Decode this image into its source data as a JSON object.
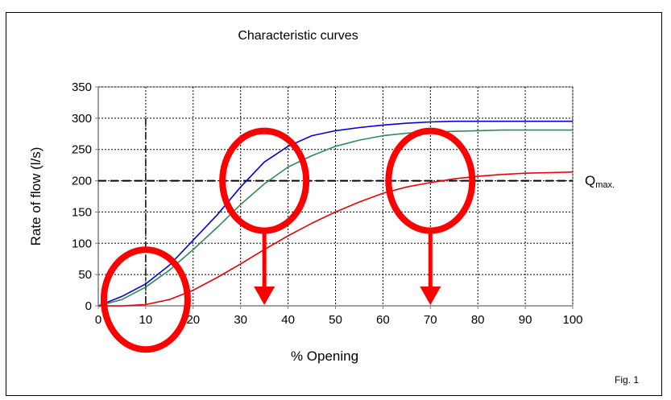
{
  "chart_data": {
    "type": "line",
    "title": "Characteristic curves",
    "xlabel": "% Opening",
    "ylabel": "Rate of flow (l/s)",
    "xlim": [
      0,
      100
    ],
    "ylim": [
      0,
      350
    ],
    "xticks": [
      0,
      10,
      20,
      30,
      40,
      50,
      60,
      70,
      80,
      90,
      100
    ],
    "yticks": [
      0,
      50,
      100,
      150,
      200,
      250,
      300,
      350
    ],
    "grid": true,
    "series": [
      {
        "color": "#0000dd",
        "x": [
          0,
          5,
          10,
          15,
          20,
          25,
          30,
          35,
          40,
          45,
          50,
          55,
          60,
          65,
          70,
          75,
          80,
          85,
          90,
          95,
          100
        ],
        "y": [
          0,
          15,
          35,
          65,
          105,
          145,
          190,
          230,
          255,
          272,
          280,
          285,
          289,
          292,
          294,
          295,
          295,
          295,
          295,
          295,
          295
        ]
      },
      {
        "color": "#2e8b57",
        "x": [
          0,
          5,
          10,
          15,
          20,
          25,
          30,
          35,
          40,
          45,
          50,
          55,
          60,
          65,
          70,
          75,
          80,
          85,
          90,
          95,
          100
        ],
        "y": [
          0,
          10,
          30,
          57,
          90,
          125,
          162,
          195,
          222,
          240,
          255,
          265,
          272,
          276,
          278,
          279,
          280,
          281,
          281,
          281,
          281
        ]
      },
      {
        "color": "#ee0000",
        "x": [
          0,
          5,
          10,
          15,
          20,
          25,
          30,
          35,
          40,
          45,
          50,
          55,
          60,
          65,
          70,
          75,
          80,
          85,
          90,
          95,
          100
        ],
        "y": [
          0,
          0,
          2,
          10,
          25,
          45,
          67,
          90,
          112,
          132,
          150,
          166,
          180,
          190,
          197,
          203,
          207,
          210,
          212,
          213,
          214
        ]
      }
    ],
    "reference_lines": {
      "horizontal_y": 200,
      "vertical_x": 10,
      "qmax_label_main": "Q",
      "qmax_label_sub": "max."
    },
    "annotations": {
      "circles": [
        {
          "cx": 10,
          "cy": 10
        },
        {
          "cx": 35,
          "cy": 200
        },
        {
          "cx": 70,
          "cy": 200
        }
      ],
      "arrows": [
        {
          "x": 35,
          "y_from": 120,
          "y_to": 0
        },
        {
          "x": 70,
          "y_from": 120,
          "y_to": 0
        }
      ],
      "color": "#ff0000"
    },
    "figure_label": "Fig. 1"
  }
}
